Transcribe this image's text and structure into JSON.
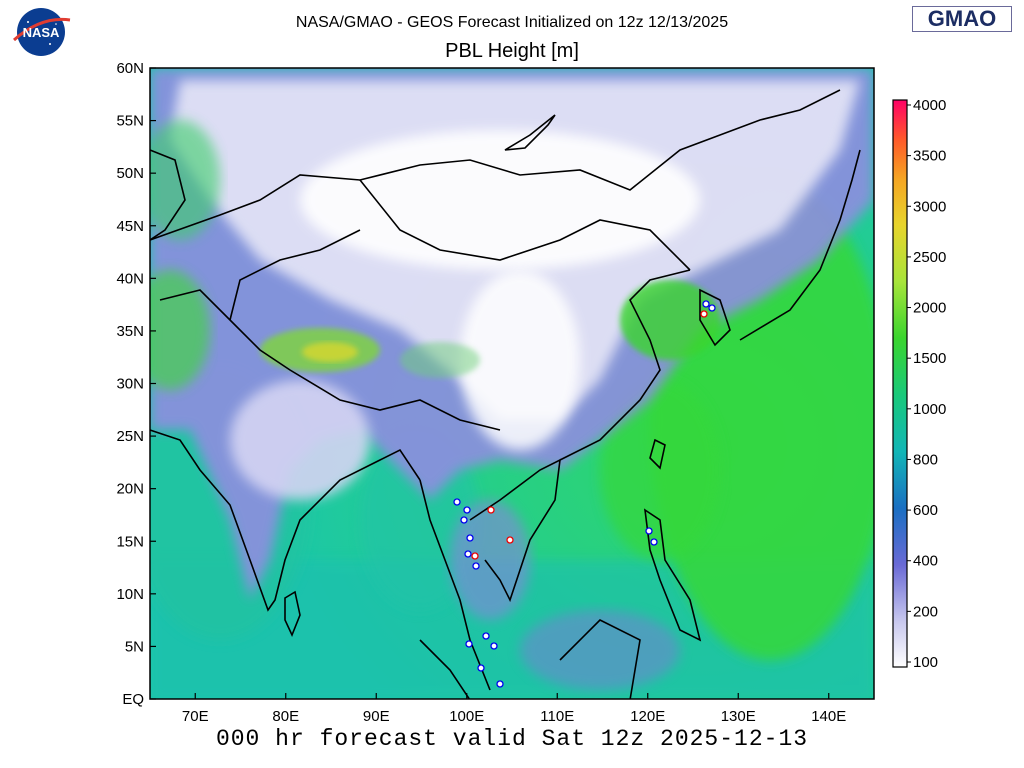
{
  "header": {
    "title": "NASA/GMAO - GEOS Forecast Initialized on 12z 12/13/2025",
    "subtitle": "PBL Height [m]"
  },
  "logos": {
    "left": "NASA",
    "right": "GMAO"
  },
  "footer": {
    "valid_time": "000 hr forecast valid Sat 12z 2025-12-13"
  },
  "map": {
    "lat_range": [
      0,
      60
    ],
    "lon_range": [
      65,
      145
    ],
    "lat_labels": [
      "60N",
      "55N",
      "50N",
      "45N",
      "40N",
      "35N",
      "30N",
      "25N",
      "20N",
      "15N",
      "10N",
      "5N",
      "EQ"
    ],
    "lon_labels": [
      "70E",
      "80E",
      "90E",
      "100E",
      "110E",
      "120E",
      "130E",
      "140E"
    ],
    "lat_ticks": [
      60,
      55,
      50,
      45,
      40,
      35,
      30,
      25,
      20,
      15,
      10,
      5,
      0
    ],
    "lon_ticks": [
      70,
      80,
      90,
      100,
      110,
      120,
      130,
      140
    ]
  },
  "colorbar": {
    "labels": [
      "4000",
      "3500",
      "3000",
      "2500",
      "2000",
      "1500",
      "1000",
      "800",
      "600",
      "400",
      "200",
      "100"
    ],
    "colors": [
      "#ff0066",
      "#ff3b30",
      "#ff7a1f",
      "#f5a623",
      "#e8d42c",
      "#a8e43a",
      "#3ad52e",
      "#19c97a",
      "#12b6b6",
      "#1a6fc2",
      "#6a6ad6",
      "#b4b4e8",
      "#ffffff"
    ]
  },
  "icons": {
    "nasa": "nasa-meatball-icon",
    "gmao": "gmao-wordmark"
  }
}
